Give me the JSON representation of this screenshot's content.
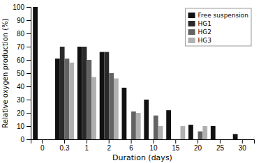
{
  "chart_data": {
    "type": "bar",
    "categories": [
      "0",
      "0.3",
      "1",
      "2",
      "6",
      "10",
      "15",
      "20",
      "25",
      "30"
    ],
    "series": [
      {
        "name": "Free suspension",
        "color": "#111111",
        "values": [
          100,
          61,
          70,
          66,
          39,
          30,
          22,
          11,
          10,
          4
        ]
      },
      {
        "name": "HG1",
        "color": "#2a2a2a",
        "values": [
          0,
          70,
          70,
          66,
          0,
          0,
          0,
          0,
          0,
          0
        ]
      },
      {
        "name": "HG2",
        "color": "#636363",
        "values": [
          0,
          61,
          60,
          50,
          21,
          18,
          0,
          6,
          0,
          0
        ]
      },
      {
        "name": "HG3",
        "color": "#b0b0b0",
        "values": [
          0,
          58,
          47,
          46,
          20,
          10,
          10,
          10,
          0,
          0
        ]
      }
    ],
    "xlabel": "Duration (days)",
    "ylabel": "Relative oxygen production (%)",
    "ylim": [
      0,
      100
    ],
    "yticks": [
      0,
      10,
      20,
      30,
      40,
      50,
      60,
      70,
      80,
      90,
      100
    ],
    "legend": "upper right",
    "grid": false
  }
}
